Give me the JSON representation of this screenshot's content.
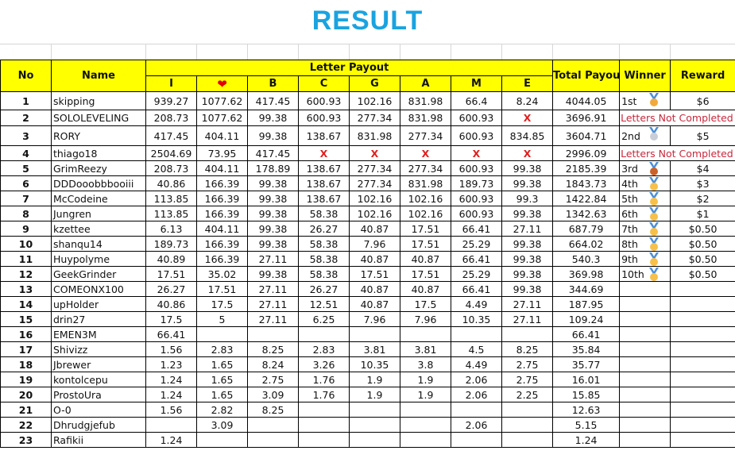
{
  "title": "RESULT",
  "headers": {
    "no": "No",
    "name": "Name",
    "letter_payout": "Letter Payout",
    "letters": [
      "I",
      "heart",
      "B",
      "C",
      "G",
      "A",
      "M",
      "E"
    ],
    "total": "Total Payout",
    "winner": "Winner",
    "reward": "Reward"
  },
  "heart_symbol": "❤",
  "colors": {
    "header_bg": "#ffff00",
    "title": "#1aa3e0",
    "missing": "#e02020",
    "not_completed": "#c8283c"
  },
  "missing_mark": "X",
  "rows": [
    {
      "no": "1",
      "name": "skipping",
      "letters": [
        "939.27",
        "1077.62",
        "417.45",
        "600.93",
        "102.16",
        "831.98",
        "66.4",
        "8.24"
      ],
      "total": "4044.05",
      "winner": "1st",
      "medal": "gold",
      "reward": "$6"
    },
    {
      "no": "2",
      "name": "SOLOLEVELING",
      "letters": [
        "208.73",
        "1077.62",
        "99.38",
        "600.93",
        "277.34",
        "831.98",
        "600.93",
        "X"
      ],
      "total": "3696.91",
      "note": "Letters Not Completed"
    },
    {
      "no": "3",
      "name": "RORY",
      "letters": [
        "417.45",
        "404.11",
        "99.38",
        "138.67",
        "831.98",
        "277.34",
        "600.93",
        "834.85"
      ],
      "total": "3604.71",
      "winner": "2nd",
      "medal": "silver",
      "reward": "$5"
    },
    {
      "no": "4",
      "name": "thiago18",
      "letters": [
        "2504.69",
        "73.95",
        "417.45",
        "X",
        "X",
        "X",
        "X",
        "X"
      ],
      "total": "2996.09",
      "note": "Letters Not Completed"
    },
    {
      "no": "5",
      "name": "GrimReezy",
      "letters": [
        "208.73",
        "404.11",
        "178.89",
        "138.67",
        "277.34",
        "277.34",
        "600.93",
        "99.38"
      ],
      "total": "2185.39",
      "winner": "3rd",
      "medal": "bronze",
      "reward": "$4"
    },
    {
      "no": "6",
      "name": "DDDooobbbooiii",
      "letters": [
        "40.86",
        "166.39",
        "99.38",
        "138.67",
        "277.34",
        "831.98",
        "189.73",
        "99.38"
      ],
      "total": "1843.73",
      "winner": "4th",
      "medal": "other",
      "reward": "$3"
    },
    {
      "no": "7",
      "name": "McCodeine",
      "letters": [
        "113.85",
        "166.39",
        "99.38",
        "138.67",
        "102.16",
        "102.16",
        "600.93",
        "99.3"
      ],
      "total": "1422.84",
      "winner": "5th",
      "medal": "other",
      "reward": "$2"
    },
    {
      "no": "8",
      "name": "Jungren",
      "letters": [
        "113.85",
        "166.39",
        "99.38",
        "58.38",
        "102.16",
        "102.16",
        "600.93",
        "99.38"
      ],
      "total": "1342.63",
      "winner": "6th",
      "medal": "other",
      "reward": "$1"
    },
    {
      "no": "9",
      "name": "kzettee",
      "letters": [
        "6.13",
        "404.11",
        "99.38",
        "26.27",
        "40.87",
        "17.51",
        "66.41",
        "27.11"
      ],
      "total": "687.79",
      "winner": "7th",
      "medal": "other",
      "reward": "$0.50"
    },
    {
      "no": "10",
      "name": "shanqu14",
      "letters": [
        "189.73",
        "166.39",
        "99.38",
        "58.38",
        "7.96",
        "17.51",
        "25.29",
        "99.38"
      ],
      "total": "664.02",
      "winner": "8th",
      "medal": "other",
      "reward": "$0.50"
    },
    {
      "no": "11",
      "name": "Huypolyme",
      "letters": [
        "40.89",
        "166.39",
        "27.11",
        "58.38",
        "40.87",
        "40.87",
        "66.41",
        "99.38"
      ],
      "total": "540.3",
      "winner": "9th",
      "medal": "other",
      "reward": "$0.50"
    },
    {
      "no": "12",
      "name": "GeekGrinder",
      "letters": [
        "17.51",
        "35.02",
        "99.38",
        "58.38",
        "17.51",
        "17.51",
        "25.29",
        "99.38"
      ],
      "total": "369.98",
      "winner": "10th",
      "medal": "other",
      "reward": "$0.50"
    },
    {
      "no": "13",
      "name": "COMEONX100",
      "letters": [
        "26.27",
        "17.51",
        "27.11",
        "26.27",
        "40.87",
        "40.87",
        "66.41",
        "99.38"
      ],
      "total": "344.69"
    },
    {
      "no": "14",
      "name": "upHolder",
      "letters": [
        "40.86",
        "17.5",
        "27.11",
        "12.51",
        "40.87",
        "17.5",
        "4.49",
        "27.11"
      ],
      "total": "187.95"
    },
    {
      "no": "15",
      "name": "drin27",
      "letters": [
        "17.5",
        "5",
        "27.11",
        "6.25",
        "7.96",
        "7.96",
        "10.35",
        "27.11"
      ],
      "total": "109.24"
    },
    {
      "no": "16",
      "name": "EMEN3M",
      "letters": [
        "66.41",
        "",
        "",
        "",
        "",
        "",
        "",
        ""
      ],
      "total": "66.41"
    },
    {
      "no": "17",
      "name": "Shivizz",
      "letters": [
        "1.56",
        "2.83",
        "8.25",
        "2.83",
        "3.81",
        "3.81",
        "4.5",
        "8.25"
      ],
      "total": "35.84"
    },
    {
      "no": "18",
      "name": "Jbrewer",
      "letters": [
        "1.23",
        "1.65",
        "8.24",
        "3.26",
        "10.35",
        "3.8",
        "4.49",
        "2.75"
      ],
      "total": "35.77"
    },
    {
      "no": "19",
      "name": "kontolcepu",
      "letters": [
        "1.24",
        "1.65",
        "2.75",
        "1.76",
        "1.9",
        "1.9",
        "2.06",
        "2.75"
      ],
      "total": "16.01"
    },
    {
      "no": "20",
      "name": "ProstoUra",
      "letters": [
        "1.24",
        "1.65",
        "3.09",
        "1.76",
        "1.9",
        "1.9",
        "2.06",
        "2.25"
      ],
      "total": "15.85"
    },
    {
      "no": "21",
      "name": "O-0",
      "letters": [
        "1.56",
        "2.82",
        "8.25",
        "",
        "",
        "",
        "",
        ""
      ],
      "total": "12.63"
    },
    {
      "no": "22",
      "name": "Dhrudgjefub",
      "letters": [
        "",
        "3.09",
        "",
        "",
        "",
        "",
        "2.06",
        ""
      ],
      "total": "5.15"
    },
    {
      "no": "23",
      "name": "Rafikii",
      "letters": [
        "1.24",
        "",
        "",
        "",
        "",
        "",
        "",
        ""
      ],
      "total": "1.24"
    }
  ]
}
